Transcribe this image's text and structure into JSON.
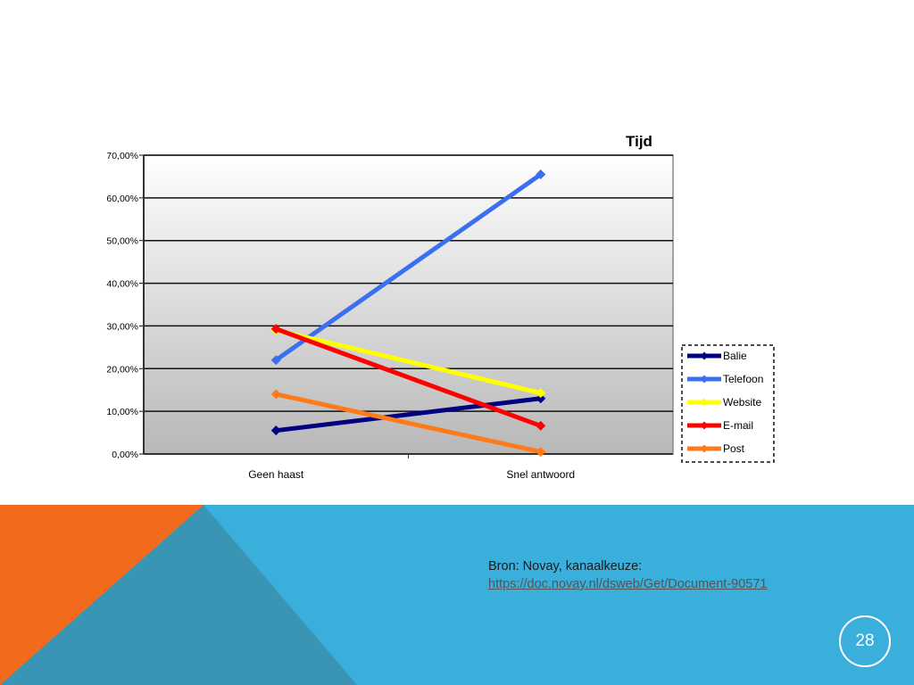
{
  "slide": {
    "source_label": "Bron: Novay, kanaalkeuze:",
    "source_link": "https://doc.novay.nl/dsweb/Get/Document-90571",
    "page_number": "28"
  },
  "colors": {
    "footer_blue": "#3aafdc",
    "footer_dark_blue": "#3a94b4",
    "footer_orange": "#f26b1d"
  },
  "chart_data": {
    "type": "line",
    "title": "Tijd",
    "xlabel": "",
    "ylabel": "",
    "categories": [
      "Geen haast",
      "Snel antwoord"
    ],
    "ylim": [
      0,
      0.7
    ],
    "yticks": [
      "0,00%",
      "10,00%",
      "20,00%",
      "30,00%",
      "40,00%",
      "50,00%",
      "60,00%",
      "70,00%"
    ],
    "grid": true,
    "legend_position": "right",
    "series": [
      {
        "name": "Balie",
        "color": "#000080",
        "values": [
          0.055,
          0.13
        ]
      },
      {
        "name": "Telefoon",
        "color": "#3a6ff0",
        "values": [
          0.22,
          0.655
        ]
      },
      {
        "name": "Website",
        "color": "#ffff00",
        "values": [
          0.29,
          0.143
        ]
      },
      {
        "name": "E-mail",
        "color": "#ff0000",
        "values": [
          0.293,
          0.066
        ]
      },
      {
        "name": "Post",
        "color": "#ff7a1a",
        "values": [
          0.14,
          0.005
        ]
      }
    ]
  }
}
